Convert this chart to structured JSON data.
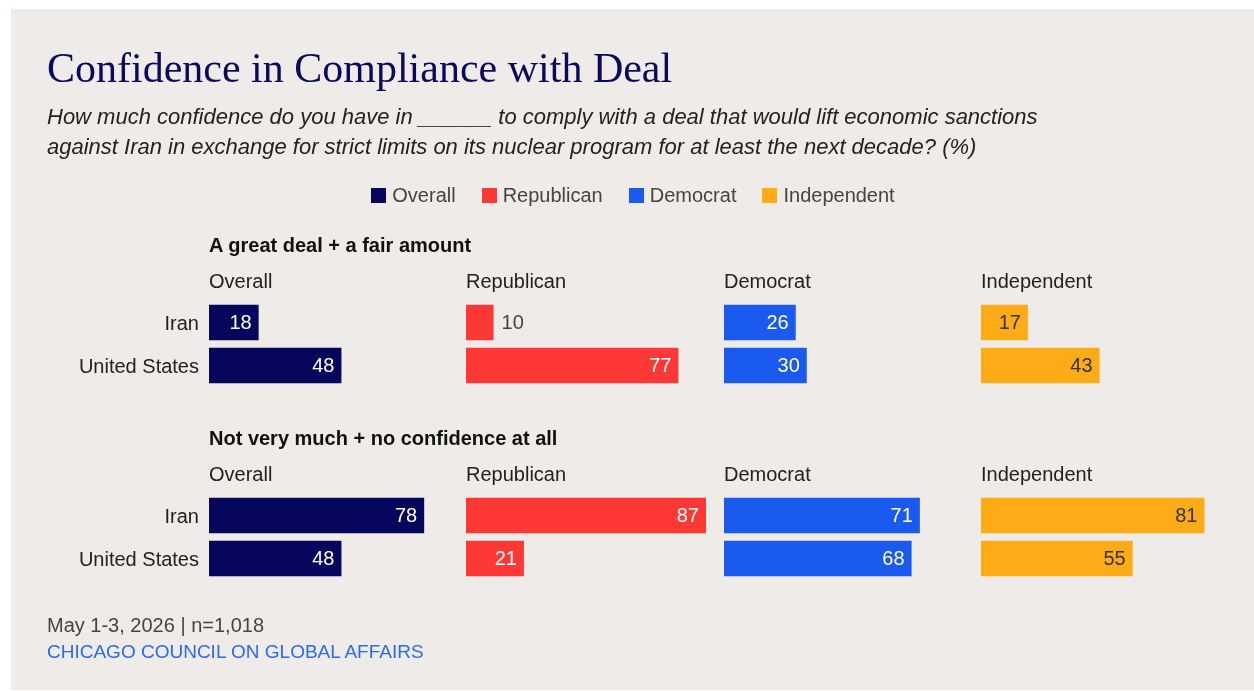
{
  "chart_data": [
    {
      "type": "other",
      "title": "Confidence in Compliance with Deal",
      "subtitle": "How much confidence do you have in ______ to comply with a deal that would lift economic sanctions against Iran in exchange for strict limits on its nuclear program for at least the next decade? (%)",
      "categories": [
        "Overall",
        "Republican",
        "Democrat",
        "Independent"
      ],
      "colors": [
        "#06065c",
        "#fe3935",
        "#1a5aef",
        "#feab18"
      ],
      "annotations": [
        "May 1-3, 2026 | n=1,018",
        "CHICAGO COUNCIL ON GLOBAL AFFAIRS"
      ]
    },
    {
      "type": "other",
      "title": "A great deal + a fair amount"
    },
    {
      "type": "bar",
      "orientation": "horizontal",
      "title": "Overall",
      "categories": [
        "Iran",
        "United States"
      ],
      "values": [
        18,
        48
      ],
      "color": "#06065c",
      "data_labels": true,
      "tick_labels": "y"
    },
    {
      "type": "bar",
      "orientation": "horizontal",
      "title": "Republican",
      "categories": [
        null,
        null
      ],
      "values": [
        10,
        77
      ],
      "color": "#fe3935",
      "data_labels": true
    },
    {
      "type": "bar",
      "orientation": "horizontal",
      "title": "Democrat",
      "categories": [
        null,
        null
      ],
      "values": [
        26,
        30
      ],
      "color": "#1a5aef",
      "data_labels": true
    },
    {
      "type": "bar",
      "orientation": "horizontal",
      "title": "Independent",
      "categories": [
        null,
        null
      ],
      "values": [
        17,
        43
      ],
      "color": "#feab18",
      "data_labels": true
    },
    {
      "type": "other",
      "title": "Not very much + no confidence at all"
    },
    {
      "type": "bar",
      "orientation": "horizontal",
      "title": "Overall",
      "categories": [
        "Iran",
        "United States"
      ],
      "values": [
        78,
        48
      ],
      "color": "#06065c",
      "data_labels": true,
      "tick_labels": "y"
    },
    {
      "type": "bar",
      "orientation": "horizontal",
      "title": "Republican",
      "categories": [
        null,
        null
      ],
      "values": [
        87,
        21
      ],
      "color": "#fe3935",
      "data_labels": true
    },
    {
      "type": "bar",
      "orientation": "horizontal",
      "title": "Democrat",
      "categories": [
        null,
        null
      ],
      "values": [
        71,
        68
      ],
      "color": "#1a5aef",
      "data_labels": true
    },
    {
      "type": "bar",
      "orientation": "horizontal",
      "title": "Independent",
      "categories": [
        null,
        null
      ],
      "values": [
        81,
        55
      ],
      "color": "#feab18",
      "data_labels": true
    }
  ]
}
